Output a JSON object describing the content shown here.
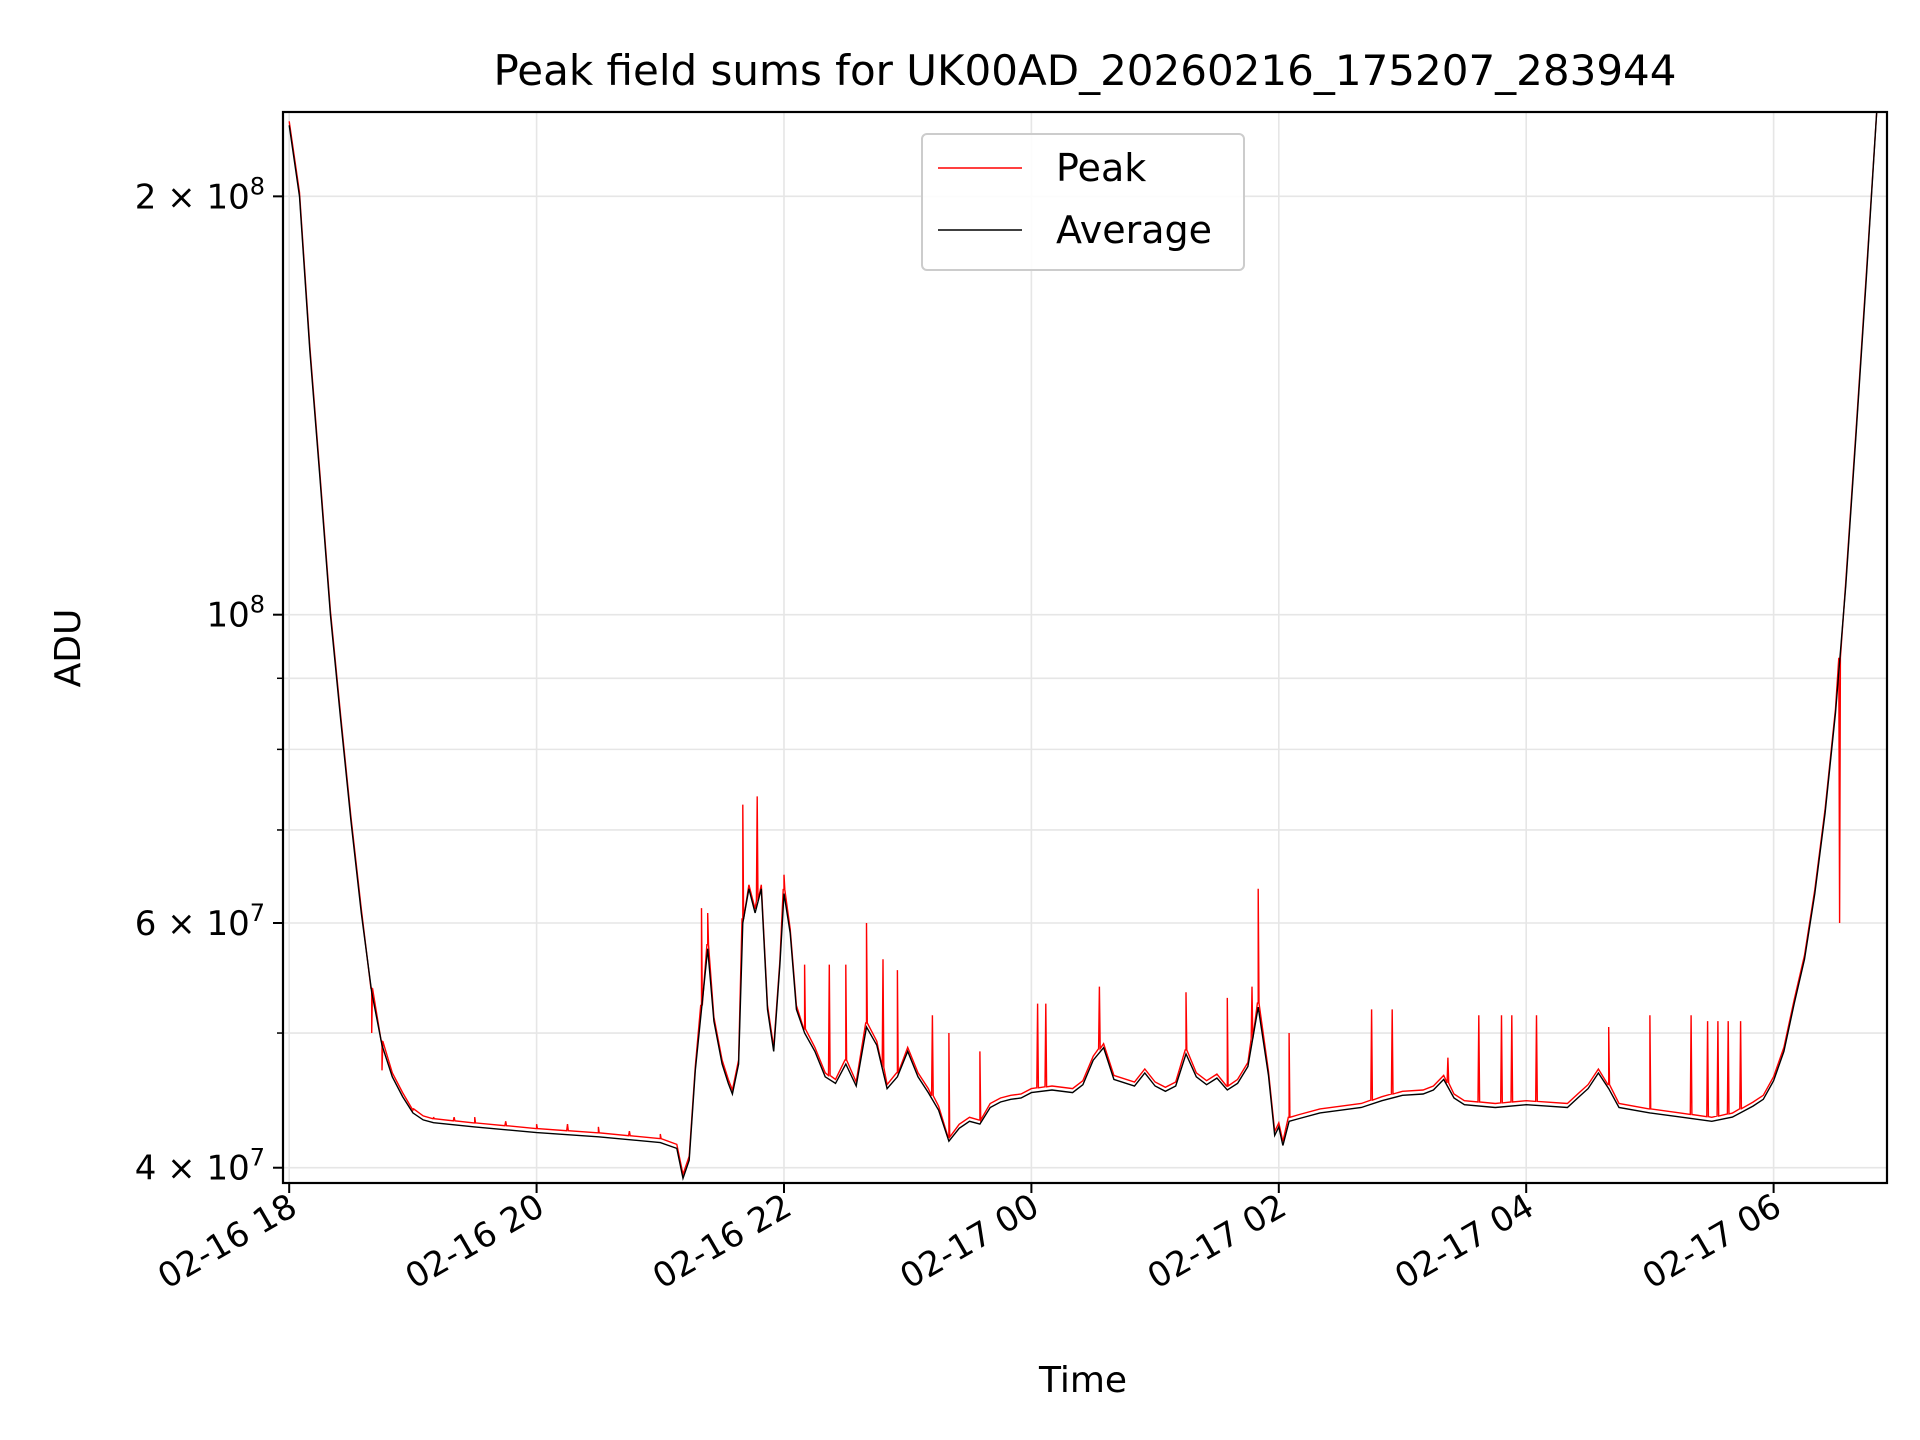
{
  "chart_data": {
    "type": "line",
    "title": "Peak field sums for UK00AD_20260216_175207_283944",
    "xlabel": "Time",
    "ylabel": "ADU",
    "y_scale": "log",
    "ylim": [
      39000000,
      230000000
    ],
    "xlim": [
      "2026-02-16 17:57",
      "2026-02-17 06:55"
    ],
    "grid": true,
    "legend_position": "upper center",
    "x_tick_labels": [
      "02-16 18",
      "02-16 20",
      "02-16 22",
      "02-17 00",
      "02-17 02",
      "02-17 04",
      "02-17 06"
    ],
    "x_ticks": [
      "2026-02-16 18:00",
      "2026-02-16 20:00",
      "2026-02-16 22:00",
      "2026-02-17 00:00",
      "2026-02-17 02:00",
      "2026-02-17 04:00",
      "2026-02-17 06:00"
    ],
    "y_major_ticks": [
      {
        "value": 40000000,
        "mantissa": "4",
        "exponent": "7"
      },
      {
        "value": 60000000,
        "mantissa": "6",
        "exponent": "7"
      },
      {
        "value": 100000000,
        "mantissa": "",
        "exponent": "8"
      },
      {
        "value": 200000000,
        "mantissa": "2",
        "exponent": "8"
      }
    ],
    "y_minor_ticks": [
      50000000,
      70000000,
      80000000,
      90000000
    ],
    "series": [
      {
        "name": "Peak",
        "color": "#ff0000",
        "spikes": [
          [
            "2026-02-16 18:40",
            50000000
          ],
          [
            "2026-02-16 18:45",
            47000000
          ],
          [
            "2026-02-16 19:00",
            44000000
          ],
          [
            "2026-02-16 19:10",
            43500000
          ],
          [
            "2026-02-16 19:20",
            43500000
          ],
          [
            "2026-02-16 19:30",
            43500000
          ],
          [
            "2026-02-16 19:45",
            43200000
          ],
          [
            "2026-02-16 20:00",
            43000000
          ],
          [
            "2026-02-16 20:15",
            43000000
          ],
          [
            "2026-02-16 20:30",
            42800000
          ],
          [
            "2026-02-16 20:45",
            42500000
          ],
          [
            "2026-02-16 21:00",
            42300000
          ],
          [
            "2026-02-16 21:20",
            61500000
          ],
          [
            "2026-02-16 21:23",
            61000000
          ],
          [
            "2026-02-16 21:40",
            73000000
          ],
          [
            "2026-02-16 21:47",
            74000000
          ],
          [
            "2026-02-16 22:00",
            65000000
          ],
          [
            "2026-02-16 22:10",
            56000000
          ],
          [
            "2026-02-16 22:22",
            56000000
          ],
          [
            "2026-02-16 22:30",
            56000000
          ],
          [
            "2026-02-16 22:40",
            60000000
          ],
          [
            "2026-02-16 22:48",
            56500000
          ],
          [
            "2026-02-16 22:55",
            55500000
          ],
          [
            "2026-02-16 23:12",
            51500000
          ],
          [
            "2026-02-16 23:20",
            50000000
          ],
          [
            "2026-02-16 23:35",
            48500000
          ],
          [
            "2026-02-17 00:03",
            52500000
          ],
          [
            "2026-02-17 00:07",
            52500000
          ],
          [
            "2026-02-17 00:33",
            54000000
          ],
          [
            "2026-02-17 01:15",
            53500000
          ],
          [
            "2026-02-17 01:35",
            53000000
          ],
          [
            "2026-02-17 01:47",
            54000000
          ],
          [
            "2026-02-17 01:50",
            63500000
          ],
          [
            "2026-02-17 02:05",
            50000000
          ],
          [
            "2026-02-17 02:45",
            52000000
          ],
          [
            "2026-02-17 02:55",
            52000000
          ],
          [
            "2026-02-17 03:22",
            48000000
          ],
          [
            "2026-02-17 03:37",
            51500000
          ],
          [
            "2026-02-17 03:48",
            51500000
          ],
          [
            "2026-02-17 03:53",
            51500000
          ],
          [
            "2026-02-17 04:05",
            51500000
          ],
          [
            "2026-02-17 04:40",
            50500000
          ],
          [
            "2026-02-17 05:00",
            51500000
          ],
          [
            "2026-02-17 05:20",
            51500000
          ],
          [
            "2026-02-17 05:28",
            51000000
          ],
          [
            "2026-02-17 05:33",
            51000000
          ],
          [
            "2026-02-17 05:38",
            51000000
          ],
          [
            "2026-02-17 05:44",
            51000000
          ],
          [
            "2026-02-17 06:32",
            60000000
          ]
        ]
      },
      {
        "name": "Average",
        "color": "#000000",
        "values": [
          [
            "2026-02-16 18:00",
            225000000
          ],
          [
            "2026-02-16 18:05",
            200000000
          ],
          [
            "2026-02-16 18:10",
            155000000
          ],
          [
            "2026-02-16 18:15",
            125000000
          ],
          [
            "2026-02-16 18:20",
            100000000
          ],
          [
            "2026-02-16 18:25",
            84000000
          ],
          [
            "2026-02-16 18:30",
            71000000
          ],
          [
            "2026-02-16 18:35",
            61000000
          ],
          [
            "2026-02-16 18:40",
            53500000
          ],
          [
            "2026-02-16 18:45",
            49000000
          ],
          [
            "2026-02-16 18:50",
            46500000
          ],
          [
            "2026-02-16 18:55",
            45000000
          ],
          [
            "2026-02-16 19:00",
            43800000
          ],
          [
            "2026-02-16 19:05",
            43300000
          ],
          [
            "2026-02-16 19:10",
            43100000
          ],
          [
            "2026-02-16 19:30",
            42800000
          ],
          [
            "2026-02-16 20:00",
            42400000
          ],
          [
            "2026-02-16 20:30",
            42100000
          ],
          [
            "2026-02-16 21:00",
            41700000
          ],
          [
            "2026-02-16 21:08",
            41300000
          ],
          [
            "2026-02-16 21:11",
            39300000
          ],
          [
            "2026-02-16 21:14",
            40500000
          ],
          [
            "2026-02-16 21:17",
            47000000
          ],
          [
            "2026-02-16 21:20",
            52000000
          ],
          [
            "2026-02-16 21:23",
            57500000
          ],
          [
            "2026-02-16 21:26",
            51000000
          ],
          [
            "2026-02-16 21:30",
            47500000
          ],
          [
            "2026-02-16 21:33",
            46000000
          ],
          [
            "2026-02-16 21:35",
            45200000
          ],
          [
            "2026-02-16 21:38",
            47500000
          ],
          [
            "2026-02-16 21:40",
            60000000
          ],
          [
            "2026-02-16 21:43",
            63500000
          ],
          [
            "2026-02-16 21:46",
            61000000
          ],
          [
            "2026-02-16 21:49",
            63500000
          ],
          [
            "2026-02-16 21:52",
            52000000
          ],
          [
            "2026-02-16 21:55",
            48500000
          ],
          [
            "2026-02-16 21:58",
            56000000
          ],
          [
            "2026-02-16 22:00",
            63000000
          ],
          [
            "2026-02-16 22:03",
            59000000
          ],
          [
            "2026-02-16 22:06",
            52000000
          ],
          [
            "2026-02-16 22:10",
            50000000
          ],
          [
            "2026-02-16 22:15",
            48500000
          ],
          [
            "2026-02-16 22:20",
            46500000
          ],
          [
            "2026-02-16 22:25",
            46000000
          ],
          [
            "2026-02-16 22:30",
            47500000
          ],
          [
            "2026-02-16 22:35",
            45800000
          ],
          [
            "2026-02-16 22:40",
            50500000
          ],
          [
            "2026-02-16 22:45",
            49000000
          ],
          [
            "2026-02-16 22:50",
            45600000
          ],
          [
            "2026-02-16 22:55",
            46500000
          ],
          [
            "2026-02-16 23:00",
            48500000
          ],
          [
            "2026-02-16 23:05",
            46500000
          ],
          [
            "2026-02-16 23:10",
            45300000
          ],
          [
            "2026-02-16 23:15",
            44000000
          ],
          [
            "2026-02-16 23:20",
            41800000
          ],
          [
            "2026-02-16 23:25",
            42700000
          ],
          [
            "2026-02-16 23:30",
            43200000
          ],
          [
            "2026-02-16 23:35",
            43000000
          ],
          [
            "2026-02-16 23:40",
            44200000
          ],
          [
            "2026-02-16 23:45",
            44600000
          ],
          [
            "2026-02-16 23:50",
            44800000
          ],
          [
            "2026-02-16 23:55",
            44900000
          ],
          [
            "2026-02-17 00:00",
            45300000
          ],
          [
            "2026-02-17 00:10",
            45500000
          ],
          [
            "2026-02-17 00:20",
            45300000
          ],
          [
            "2026-02-17 00:25",
            45900000
          ],
          [
            "2026-02-17 00:30",
            47800000
          ],
          [
            "2026-02-17 00:35",
            48800000
          ],
          [
            "2026-02-17 00:40",
            46300000
          ],
          [
            "2026-02-17 00:50",
            45800000
          ],
          [
            "2026-02-17 00:55",
            46800000
          ],
          [
            "2026-02-17 01:00",
            45800000
          ],
          [
            "2026-02-17 01:05",
            45400000
          ],
          [
            "2026-02-17 01:10",
            45800000
          ],
          [
            "2026-02-17 01:15",
            48300000
          ],
          [
            "2026-02-17 01:20",
            46500000
          ],
          [
            "2026-02-17 01:25",
            45900000
          ],
          [
            "2026-02-17 01:30",
            46400000
          ],
          [
            "2026-02-17 01:35",
            45500000
          ],
          [
            "2026-02-17 01:40",
            46000000
          ],
          [
            "2026-02-17 01:45",
            47300000
          ],
          [
            "2026-02-17 01:50",
            52200000
          ],
          [
            "2026-02-17 01:55",
            46600000
          ],
          [
            "2026-02-17 01:58",
            42200000
          ],
          [
            "2026-02-17 02:00",
            42800000
          ],
          [
            "2026-02-17 02:02",
            41500000
          ],
          [
            "2026-02-17 02:05",
            43200000
          ],
          [
            "2026-02-17 02:10",
            43400000
          ],
          [
            "2026-02-17 02:20",
            43800000
          ],
          [
            "2026-02-17 02:30",
            44000000
          ],
          [
            "2026-02-17 02:40",
            44200000
          ],
          [
            "2026-02-17 02:50",
            44700000
          ],
          [
            "2026-02-17 03:00",
            45100000
          ],
          [
            "2026-02-17 03:10",
            45200000
          ],
          [
            "2026-02-17 03:15",
            45500000
          ],
          [
            "2026-02-17 03:20",
            46300000
          ],
          [
            "2026-02-17 03:25",
            44900000
          ],
          [
            "2026-02-17 03:30",
            44400000
          ],
          [
            "2026-02-17 03:45",
            44200000
          ],
          [
            "2026-02-17 04:00",
            44400000
          ],
          [
            "2026-02-17 04:10",
            44300000
          ],
          [
            "2026-02-17 04:20",
            44200000
          ],
          [
            "2026-02-17 04:25",
            44900000
          ],
          [
            "2026-02-17 04:30",
            45600000
          ],
          [
            "2026-02-17 04:35",
            46800000
          ],
          [
            "2026-02-17 04:40",
            45600000
          ],
          [
            "2026-02-17 04:45",
            44200000
          ],
          [
            "2026-02-17 05:00",
            43800000
          ],
          [
            "2026-02-17 05:15",
            43500000
          ],
          [
            "2026-02-17 05:30",
            43200000
          ],
          [
            "2026-02-17 05:40",
            43500000
          ],
          [
            "2026-02-17 05:50",
            44300000
          ],
          [
            "2026-02-17 05:55",
            44800000
          ],
          [
            "2026-02-17 06:00",
            46200000
          ],
          [
            "2026-02-17 06:05",
            48500000
          ],
          [
            "2026-02-17 06:10",
            52500000
          ],
          [
            "2026-02-17 06:15",
            56500000
          ],
          [
            "2026-02-17 06:20",
            63000000
          ],
          [
            "2026-02-17 06:25",
            72000000
          ],
          [
            "2026-02-17 06:30",
            85000000
          ],
          [
            "2026-02-17 06:35",
            105000000
          ],
          [
            "2026-02-17 06:40",
            135000000
          ],
          [
            "2026-02-17 06:45",
            175000000
          ],
          [
            "2026-02-17 06:50",
            230000000
          ]
        ]
      }
    ]
  }
}
